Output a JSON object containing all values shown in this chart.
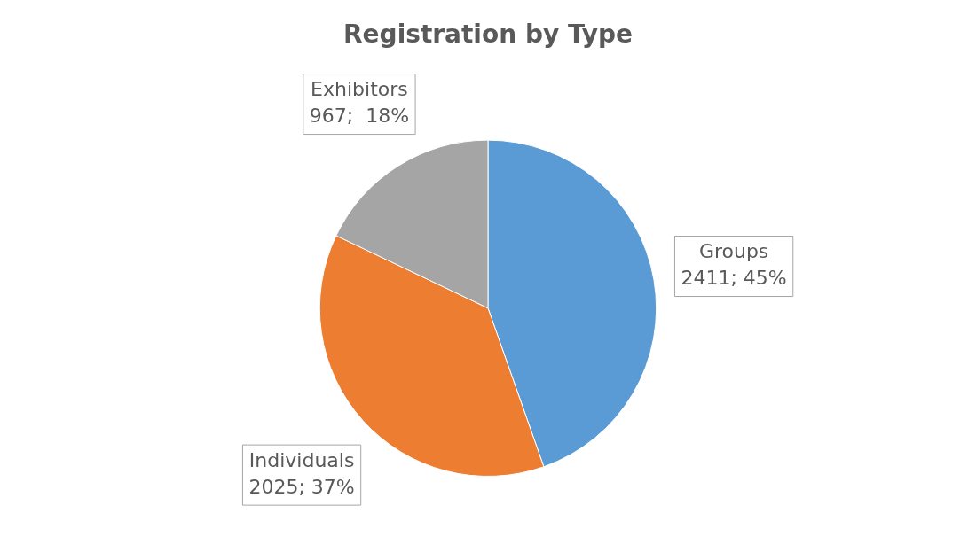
{
  "chart_data": {
    "type": "pie",
    "title": "Registration by Type",
    "categories": [
      "Groups",
      "Individuals",
      "Exhibitors"
    ],
    "values": [
      2411,
      2025,
      967
    ],
    "value_labels": [
      "2411; 45%",
      "2025; 37%",
      "967;  18%"
    ],
    "colors": [
      "#5b9bd5",
      "#ed7d31",
      "#a5a5a5"
    ]
  }
}
